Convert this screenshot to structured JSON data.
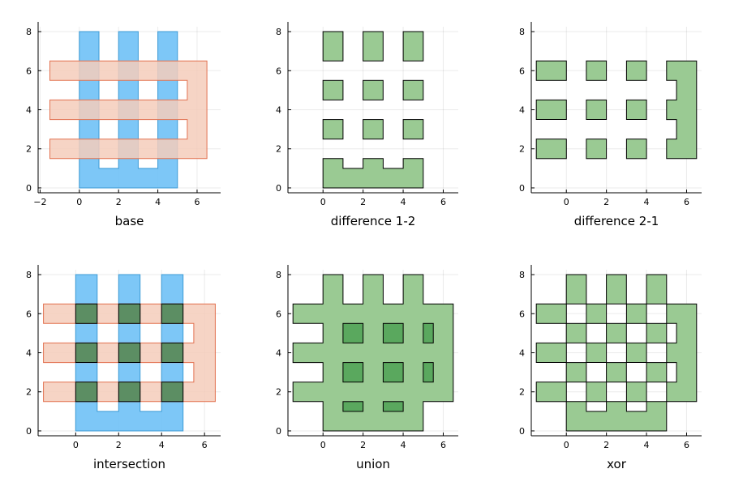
{
  "chart_data": [
    {
      "type": "area",
      "xlabel": "base",
      "xlim": [
        -2.1,
        7.2
      ],
      "ylim": [
        -0.25,
        8.25
      ],
      "xticks": [
        -2,
        0,
        2,
        4,
        6
      ],
      "yticks": [
        0,
        2,
        4,
        6,
        8
      ],
      "shapes": [
        {
          "name": "shape 1",
          "role": "blue",
          "polygon": [
            [
              0,
              0
            ],
            [
              5,
              0
            ],
            [
              5,
              8
            ],
            [
              4,
              8
            ],
            [
              4,
              1
            ],
            [
              3,
              1
            ],
            [
              3,
              8
            ],
            [
              2,
              8
            ],
            [
              2,
              1
            ],
            [
              1,
              1
            ],
            [
              1,
              8
            ],
            [
              0,
              8
            ]
          ]
        },
        {
          "name": "shape 2",
          "role": "orange",
          "polygon": [
            [
              -1.5,
              1.5
            ],
            [
              6.5,
              1.5
            ],
            [
              6.5,
              6.5
            ],
            [
              -1.5,
              6.5
            ],
            [
              -1.5,
              5.5
            ],
            [
              5.5,
              5.5
            ],
            [
              5.5,
              4.5
            ],
            [
              -1.5,
              4.5
            ],
            [
              -1.5,
              3.5
            ],
            [
              5.5,
              3.5
            ],
            [
              5.5,
              2.5
            ],
            [
              -1.5,
              2.5
            ]
          ]
        }
      ]
    },
    {
      "type": "area",
      "xlabel": "difference 1-2",
      "xlim": [
        -1.75,
        6.75
      ],
      "ylim": [
        -0.25,
        8.25
      ],
      "xticks": [
        0,
        2,
        4,
        6
      ],
      "yticks": [
        0,
        2,
        4,
        6,
        8
      ],
      "shapes": [
        {
          "name": "result",
          "role": "green",
          "rects": [
            [
              0,
              6.5,
              1,
              8
            ],
            [
              2,
              6.5,
              3,
              8
            ],
            [
              4,
              6.5,
              5,
              8
            ],
            [
              0,
              4.5,
              1,
              5.5
            ],
            [
              2,
              4.5,
              3,
              5.5
            ],
            [
              4,
              4.5,
              5,
              5.5
            ],
            [
              0,
              2.5,
              1,
              3.5
            ],
            [
              2,
              2.5,
              3,
              3.5
            ],
            [
              4,
              2.5,
              5,
              3.5
            ]
          ],
          "polygon": [
            [
              0,
              0
            ],
            [
              5,
              0
            ],
            [
              5,
              1.5
            ],
            [
              4,
              1.5
            ],
            [
              4,
              1
            ],
            [
              3,
              1
            ],
            [
              3,
              1.5
            ],
            [
              2,
              1.5
            ],
            [
              2,
              1
            ],
            [
              1,
              1
            ],
            [
              1,
              1.5
            ],
            [
              0,
              1.5
            ]
          ]
        }
      ]
    },
    {
      "type": "area",
      "xlabel": "difference 2-1",
      "xlim": [
        -1.75,
        6.75
      ],
      "ylim": [
        -0.25,
        8.25
      ],
      "xticks": [
        0,
        2,
        4,
        6
      ],
      "yticks": [
        0,
        2,
        4,
        6,
        8
      ],
      "shapes": [
        {
          "name": "result",
          "role": "green",
          "rects": [
            [
              -1.5,
              5.5,
              0,
              6.5
            ],
            [
              1,
              5.5,
              2,
              6.5
            ],
            [
              3,
              5.5,
              4,
              6.5
            ],
            [
              -1.5,
              3.5,
              0,
              4.5
            ],
            [
              1,
              3.5,
              2,
              4.5
            ],
            [
              3,
              3.5,
              4,
              4.5
            ],
            [
              -1.5,
              1.5,
              0,
              2.5
            ],
            [
              1,
              1.5,
              2,
              2.5
            ],
            [
              3,
              1.5,
              4,
              2.5
            ]
          ],
          "polygon": [
            [
              5,
              1.5
            ],
            [
              6.5,
              1.5
            ],
            [
              6.5,
              6.5
            ],
            [
              5,
              6.5
            ],
            [
              5,
              5.5
            ],
            [
              5.5,
              5.5
            ],
            [
              5.5,
              4.5
            ],
            [
              5,
              4.5
            ],
            [
              5,
              3.5
            ],
            [
              5.5,
              3.5
            ],
            [
              5.5,
              2.5
            ],
            [
              5,
              2.5
            ]
          ]
        }
      ]
    },
    {
      "type": "area",
      "xlabel": "intersection",
      "xlim": [
        -1.75,
        6.75
      ],
      "ylim": [
        -0.25,
        8.25
      ],
      "xticks": [
        0,
        2,
        4,
        6
      ],
      "yticks": [
        0,
        2,
        4,
        6,
        8
      ],
      "shapes": [
        {
          "name": "shape 1",
          "role": "blue",
          "polygon": [
            [
              0,
              0
            ],
            [
              5,
              0
            ],
            [
              5,
              8
            ],
            [
              4,
              8
            ],
            [
              4,
              1
            ],
            [
              3,
              1
            ],
            [
              3,
              8
            ],
            [
              2,
              8
            ],
            [
              2,
              1
            ],
            [
              1,
              1
            ],
            [
              1,
              8
            ],
            [
              0,
              8
            ]
          ]
        },
        {
          "name": "shape 2",
          "role": "orange",
          "polygon": [
            [
              -1.5,
              1.5
            ],
            [
              6.5,
              1.5
            ],
            [
              6.5,
              6.5
            ],
            [
              -1.5,
              6.5
            ],
            [
              -1.5,
              5.5
            ],
            [
              5.5,
              5.5
            ],
            [
              5.5,
              4.5
            ],
            [
              -1.5,
              4.5
            ],
            [
              -1.5,
              3.5
            ],
            [
              5.5,
              3.5
            ],
            [
              5.5,
              2.5
            ],
            [
              -1.5,
              2.5
            ]
          ]
        },
        {
          "name": "result",
          "role": "darkgreen",
          "rects": [
            [
              0,
              5.5,
              1,
              6.5
            ],
            [
              2,
              5.5,
              3,
              6.5
            ],
            [
              4,
              5.5,
              5,
              6.5
            ],
            [
              0,
              3.5,
              1,
              4.5
            ],
            [
              2,
              3.5,
              3,
              4.5
            ],
            [
              4,
              3.5,
              5,
              4.5
            ],
            [
              0,
              1.5,
              1,
              2.5
            ],
            [
              2,
              1.5,
              3,
              2.5
            ],
            [
              4,
              1.5,
              5,
              2.5
            ]
          ]
        }
      ]
    },
    {
      "type": "area",
      "xlabel": "union",
      "xlim": [
        -1.75,
        6.75
      ],
      "ylim": [
        -0.25,
        8.25
      ],
      "xticks": [
        0,
        2,
        4,
        6
      ],
      "yticks": [
        0,
        2,
        4,
        6,
        8
      ],
      "shapes": [
        {
          "name": "result",
          "role": "green",
          "polygon": [
            [
              0,
              0
            ],
            [
              5,
              0
            ],
            [
              5,
              1.5
            ],
            [
              6.5,
              1.5
            ],
            [
              6.5,
              6.5
            ],
            [
              5,
              6.5
            ],
            [
              5,
              8
            ],
            [
              4,
              8
            ],
            [
              4,
              6.5
            ],
            [
              3,
              6.5
            ],
            [
              3,
              8
            ],
            [
              2,
              8
            ],
            [
              2,
              6.5
            ],
            [
              1,
              6.5
            ],
            [
              1,
              8
            ],
            [
              0,
              8
            ],
            [
              0,
              6.5
            ],
            [
              -1.5,
              6.5
            ],
            [
              -1.5,
              5.5
            ],
            [
              0,
              5.5
            ],
            [
              0,
              4.5
            ],
            [
              -1.5,
              4.5
            ],
            [
              -1.5,
              3.5
            ],
            [
              0,
              3.5
            ],
            [
              0,
              2.5
            ],
            [
              -1.5,
              2.5
            ],
            [
              -1.5,
              1.5
            ],
            [
              0,
              1.5
            ]
          ]
        },
        {
          "name": "holes",
          "role": "darkgreen",
          "rects": [
            [
              1,
              4.5,
              2,
              5.5
            ],
            [
              3,
              4.5,
              4,
              5.5
            ],
            [
              5,
              4.5,
              5.5,
              5.5
            ],
            [
              1,
              2.5,
              2,
              3.5
            ],
            [
              3,
              2.5,
              4,
              3.5
            ],
            [
              5,
              2.5,
              5.5,
              3.5
            ],
            [
              1,
              1,
              2,
              1.5
            ],
            [
              3,
              1,
              4,
              1.5
            ]
          ]
        }
      ]
    },
    {
      "type": "area",
      "xlabel": "xor",
      "xlim": [
        -1.75,
        6.75
      ],
      "ylim": [
        -0.25,
        8.25
      ],
      "xticks": [
        0,
        2,
        4,
        6
      ],
      "yticks": [
        0,
        2,
        4,
        6,
        8
      ],
      "shapes": [
        {
          "name": "result",
          "role": "green",
          "rects": [
            [
              0,
              6.5,
              1,
              8
            ],
            [
              2,
              6.5,
              3,
              8
            ],
            [
              4,
              6.5,
              5,
              8
            ],
            [
              -1.5,
              5.5,
              0,
              6.5
            ],
            [
              1,
              5.5,
              2,
              6.5
            ],
            [
              3,
              5.5,
              4,
              6.5
            ],
            [
              0,
              4.5,
              1,
              5.5
            ],
            [
              2,
              4.5,
              3,
              5.5
            ],
            [
              4,
              4.5,
              5,
              5.5
            ],
            [
              -1.5,
              3.5,
              0,
              4.5
            ],
            [
              1,
              3.5,
              2,
              4.5
            ],
            [
              3,
              3.5,
              4,
              4.5
            ],
            [
              0,
              2.5,
              1,
              3.5
            ],
            [
              2,
              2.5,
              3,
              3.5
            ],
            [
              4,
              2.5,
              5,
              3.5
            ],
            [
              -1.5,
              1.5,
              0,
              2.5
            ],
            [
              1,
              1.5,
              2,
              2.5
            ],
            [
              3,
              1.5,
              4,
              2.5
            ]
          ],
          "polygons": [
            [
              [
                5,
                1.5
              ],
              [
                6.5,
                1.5
              ],
              [
                6.5,
                6.5
              ],
              [
                5,
                6.5
              ],
              [
                5,
                5.5
              ],
              [
                5.5,
                5.5
              ],
              [
                5.5,
                4.5
              ],
              [
                5,
                4.5
              ],
              [
                5,
                3.5
              ],
              [
                5.5,
                3.5
              ],
              [
                5.5,
                2.5
              ],
              [
                5,
                2.5
              ]
            ],
            [
              [
                0,
                0
              ],
              [
                5,
                0
              ],
              [
                5,
                1.5
              ],
              [
                4,
                1.5
              ],
              [
                4,
                1
              ],
              [
                3,
                1
              ],
              [
                3,
                1.5
              ],
              [
                2,
                1.5
              ],
              [
                2,
                1
              ],
              [
                1,
                1
              ],
              [
                1,
                1.5
              ],
              [
                0,
                1.5
              ]
            ]
          ]
        }
      ]
    }
  ],
  "colors": {
    "blue_fill": "#6fc1f6",
    "blue_stroke": "#3d9bd6",
    "orange_fill": "#f5cdbb",
    "orange_stroke": "#e2704f",
    "green_fill": "#9aca93",
    "green_stroke": "#000000",
    "darkgreen_fill": "#5c8e63",
    "darkgreen_stroke": "#000000",
    "hole_fill": "#5aa85e"
  }
}
